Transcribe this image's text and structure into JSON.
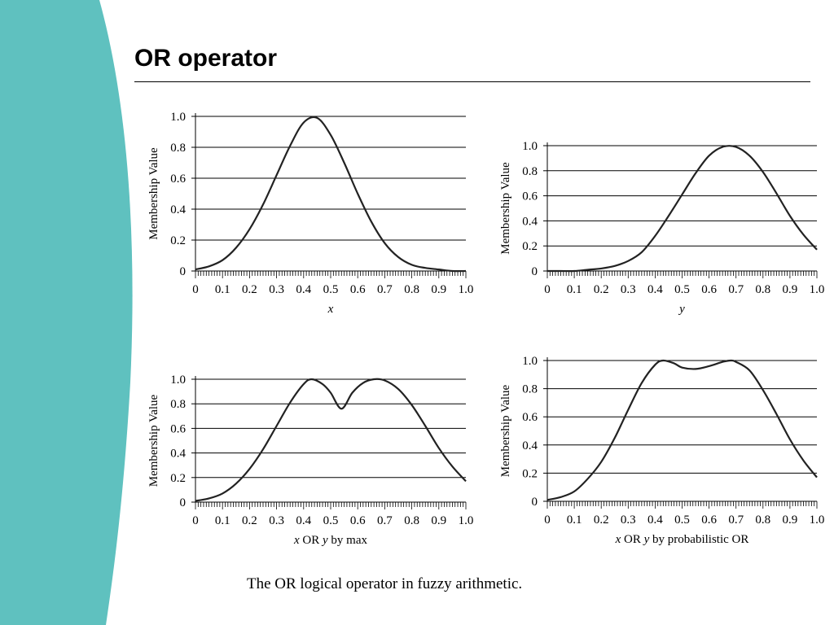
{
  "slide": {
    "title": "OR operator",
    "caption": "The OR logical operator in fuzzy arithmetic.",
    "accent_color": "#5fc1bf"
  },
  "chart_data": [
    {
      "type": "line",
      "ylabel": "Membership Value",
      "xlabel": "x",
      "xlim": [
        0,
        1
      ],
      "ylim": [
        0,
        1
      ],
      "x_ticks": [
        "0",
        "0.1",
        "0.2",
        "0.3",
        "0.4",
        "0.5",
        "0.6",
        "0.7",
        "0.8",
        "0.9",
        "1.0"
      ],
      "y_ticks": [
        "0",
        "0.2",
        "0.4",
        "0.6",
        "0.8",
        "1.0"
      ],
      "grid": "horizontal",
      "series": [
        {
          "x": [
            0,
            0.05,
            0.1,
            0.15,
            0.2,
            0.25,
            0.3,
            0.35,
            0.4,
            0.45,
            0.5,
            0.55,
            0.6,
            0.65,
            0.7,
            0.75,
            0.8,
            0.85,
            0.9,
            0.95,
            1.0
          ],
          "y": [
            0.01,
            0.03,
            0.07,
            0.15,
            0.27,
            0.43,
            0.62,
            0.81,
            0.96,
            0.99,
            0.88,
            0.7,
            0.5,
            0.32,
            0.18,
            0.09,
            0.04,
            0.02,
            0.01,
            0.0,
            0.0
          ]
        }
      ]
    },
    {
      "type": "line",
      "ylabel": "Membership Value",
      "xlabel": "y",
      "xlim": [
        0,
        1
      ],
      "ylim": [
        0,
        1
      ],
      "x_ticks": [
        "0",
        "0.1",
        "0.2",
        "0.3",
        "0.4",
        "0.5",
        "0.6",
        "0.7",
        "0.8",
        "0.9",
        "1.0"
      ],
      "y_ticks": [
        "0",
        "0.2",
        "0.4",
        "0.6",
        "0.8",
        "1.0"
      ],
      "grid": "horizontal",
      "series": [
        {
          "x": [
            0,
            0.05,
            0.1,
            0.15,
            0.2,
            0.25,
            0.3,
            0.35,
            0.4,
            0.45,
            0.5,
            0.55,
            0.6,
            0.65,
            0.7,
            0.75,
            0.8,
            0.85,
            0.9,
            0.95,
            1.0
          ],
          "y": [
            0.0,
            0.0,
            0.0,
            0.01,
            0.02,
            0.04,
            0.08,
            0.15,
            0.28,
            0.44,
            0.61,
            0.78,
            0.92,
            0.99,
            0.99,
            0.92,
            0.79,
            0.62,
            0.44,
            0.29,
            0.17
          ]
        }
      ]
    },
    {
      "type": "line",
      "ylabel": "Membership Value",
      "xlabel": "x OR y by max",
      "xlim": [
        0,
        1
      ],
      "ylim": [
        0,
        1
      ],
      "x_ticks": [
        "0",
        "0.1",
        "0.2",
        "0.3",
        "0.4",
        "0.5",
        "0.6",
        "0.7",
        "0.8",
        "0.9",
        "1.0"
      ],
      "y_ticks": [
        "0",
        "0.2",
        "0.4",
        "0.6",
        "0.8",
        "1.0"
      ],
      "grid": "horizontal",
      "series": [
        {
          "x": [
            0,
            0.05,
            0.1,
            0.15,
            0.2,
            0.25,
            0.3,
            0.35,
            0.4,
            0.43,
            0.47,
            0.5,
            0.54,
            0.58,
            0.62,
            0.66,
            0.7,
            0.75,
            0.8,
            0.85,
            0.9,
            0.95,
            1.0
          ],
          "y": [
            0.01,
            0.03,
            0.07,
            0.15,
            0.27,
            0.43,
            0.62,
            0.81,
            0.96,
            1.0,
            0.96,
            0.89,
            0.76,
            0.89,
            0.97,
            1.0,
            0.99,
            0.92,
            0.79,
            0.62,
            0.44,
            0.29,
            0.17
          ]
        }
      ]
    },
    {
      "type": "line",
      "ylabel": "Membership Value",
      "xlabel": "x OR y by probabilistic OR",
      "xlim": [
        0,
        1
      ],
      "ylim": [
        0,
        1
      ],
      "x_ticks": [
        "0",
        "0.1",
        "0.2",
        "0.3",
        "0.4",
        "0.5",
        "0.6",
        "0.7",
        "0.8",
        "0.9",
        "1.0"
      ],
      "y_ticks": [
        "0",
        "0.2",
        "0.4",
        "0.6",
        "0.8",
        "1.0"
      ],
      "grid": "horizontal",
      "series": [
        {
          "x": [
            0,
            0.05,
            0.1,
            0.15,
            0.2,
            0.25,
            0.3,
            0.35,
            0.4,
            0.43,
            0.47,
            0.5,
            0.55,
            0.6,
            0.65,
            0.68,
            0.7,
            0.75,
            0.8,
            0.85,
            0.9,
            0.95,
            1.0
          ],
          "y": [
            0.01,
            0.03,
            0.07,
            0.16,
            0.28,
            0.45,
            0.65,
            0.84,
            0.97,
            1.0,
            0.98,
            0.95,
            0.94,
            0.96,
            0.99,
            1.0,
            0.99,
            0.93,
            0.79,
            0.62,
            0.44,
            0.29,
            0.17
          ]
        }
      ]
    }
  ]
}
